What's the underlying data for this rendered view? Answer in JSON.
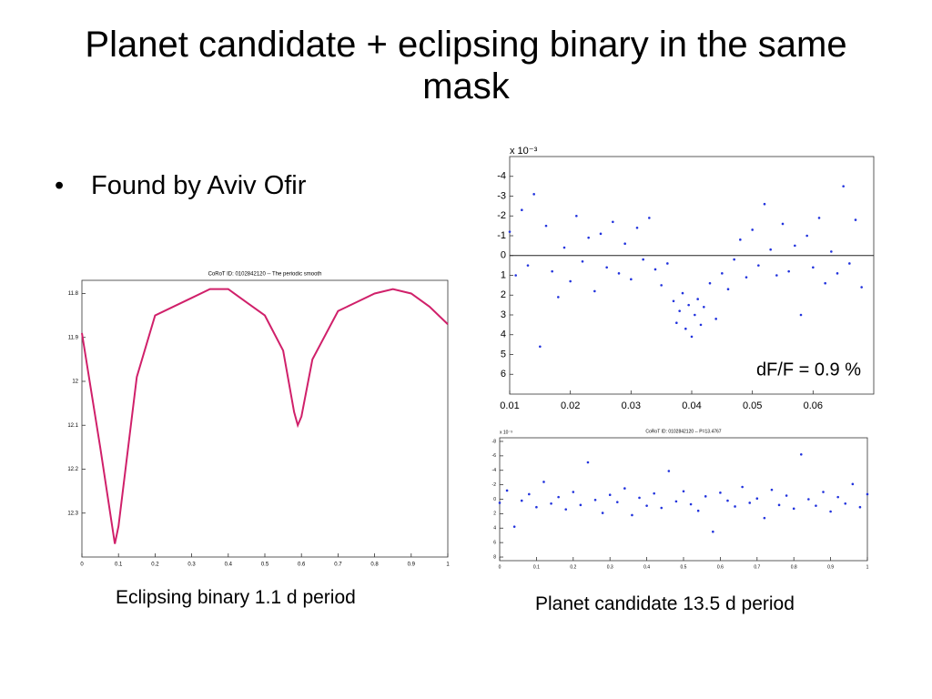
{
  "title": "Planet candidate + eclipsing binary in the same mask",
  "bullets": [
    "Found by Aviv Ofir"
  ],
  "captions": [
    "Eclipsing binary 1.1 d period",
    "Planet candidate 13.5 d period"
  ],
  "chart_data": [
    {
      "type": "line",
      "title": "CoRoT ID: 0102842120 -- The periodic smooth",
      "color": "#d0206a",
      "x": [
        0,
        0.05,
        0.09,
        0.1,
        0.15,
        0.2,
        0.25,
        0.3,
        0.35,
        0.4,
        0.45,
        0.5,
        0.55,
        0.58,
        0.59,
        0.6,
        0.63,
        0.7,
        0.75,
        0.8,
        0.85,
        0.9,
        0.95,
        1
      ],
      "values": [
        11.89,
        12.15,
        12.37,
        12.33,
        11.99,
        11.85,
        11.83,
        11.81,
        11.79,
        11.79,
        11.82,
        11.85,
        11.93,
        12.07,
        12.1,
        12.08,
        11.95,
        11.84,
        11.82,
        11.8,
        11.79,
        11.8,
        11.83,
        11.87
      ],
      "xlim": [
        0,
        1
      ],
      "xticks": [
        0,
        0.1,
        0.2,
        0.3,
        0.4,
        0.5,
        0.6,
        0.7,
        0.8,
        0.9,
        1
      ],
      "ylim": [
        11.77,
        12.4
      ],
      "yticks": [
        11.8,
        11.9,
        12,
        12.1,
        12.2,
        12.3
      ],
      "y_inverted": true
    },
    {
      "type": "scatter",
      "color": "#2233dd",
      "y_exponent_label": "x 10⁻³",
      "annotation": "dF/F = 0.9 %",
      "hline": 0,
      "x": [
        0.01,
        0.011,
        0.012,
        0.013,
        0.014,
        0.015,
        0.016,
        0.017,
        0.018,
        0.019,
        0.02,
        0.021,
        0.022,
        0.023,
        0.024,
        0.025,
        0.026,
        0.027,
        0.028,
        0.029,
        0.03,
        0.031,
        0.032,
        0.033,
        0.034,
        0.035,
        0.036,
        0.037,
        0.0375,
        0.038,
        0.0385,
        0.039,
        0.0395,
        0.04,
        0.0405,
        0.041,
        0.0415,
        0.042,
        0.043,
        0.044,
        0.045,
        0.046,
        0.047,
        0.048,
        0.049,
        0.05,
        0.051,
        0.052,
        0.053,
        0.054,
        0.055,
        0.056,
        0.057,
        0.058,
        0.059,
        0.06,
        0.061,
        0.062,
        0.063,
        0.064,
        0.065,
        0.066,
        0.067,
        0.068
      ],
      "values": [
        -1.2,
        1.0,
        -2.3,
        0.5,
        -3.1,
        4.6,
        -1.5,
        0.8,
        2.1,
        -0.4,
        1.3,
        -2.0,
        0.3,
        -0.9,
        1.8,
        -1.1,
        0.6,
        -1.7,
        0.9,
        -0.6,
        1.2,
        -1.4,
        0.2,
        -1.9,
        0.7,
        1.5,
        0.4,
        2.3,
        3.4,
        2.8,
        1.9,
        3.7,
        2.5,
        4.1,
        3.0,
        2.2,
        3.5,
        2.6,
        1.4,
        3.2,
        0.9,
        1.7,
        0.2,
        -0.8,
        1.1,
        -1.3,
        0.5,
        -2.6,
        -0.3,
        1.0,
        -1.6,
        0.8,
        -0.5,
        3.0,
        -1.0,
        0.6,
        -1.9,
        1.4,
        -0.2,
        0.9,
        -3.5,
        0.4,
        -1.8,
        1.6
      ],
      "xlim": [
        0.01,
        0.07
      ],
      "xticks": [
        0.01,
        0.02,
        0.03,
        0.04,
        0.05,
        0.06
      ],
      "ylim": [
        -5,
        7
      ],
      "yticks": [
        -4,
        -3,
        -2,
        -1,
        0,
        1,
        2,
        3,
        4,
        5,
        6
      ],
      "y_inverted": true
    },
    {
      "type": "scatter",
      "title": "CoRoT ID: 0102842120 -- P=13.4767",
      "color": "#2233dd",
      "y_exponent_label": "x 10⁻³",
      "x": [
        0,
        0.02,
        0.04,
        0.06,
        0.08,
        0.1,
        0.12,
        0.14,
        0.16,
        0.18,
        0.2,
        0.22,
        0.24,
        0.26,
        0.28,
        0.3,
        0.32,
        0.34,
        0.36,
        0.38,
        0.4,
        0.42,
        0.44,
        0.46,
        0.48,
        0.5,
        0.52,
        0.54,
        0.56,
        0.58,
        0.6,
        0.62,
        0.64,
        0.66,
        0.68,
        0.7,
        0.72,
        0.74,
        0.76,
        0.78,
        0.8,
        0.82,
        0.84,
        0.86,
        0.88,
        0.9,
        0.92,
        0.94,
        0.96,
        0.98,
        1
      ],
      "values": [
        0.5,
        -1.2,
        3.8,
        0.2,
        -0.7,
        1.1,
        -2.4,
        0.6,
        -0.3,
        1.4,
        -1.0,
        0.8,
        -5.1,
        0.1,
        1.9,
        -0.6,
        0.4,
        -1.5,
        2.2,
        -0.2,
        0.9,
        -0.8,
        1.2,
        -3.9,
        0.3,
        -1.1,
        0.7,
        1.6,
        -0.4,
        4.5,
        -0.9,
        0.2,
        1.0,
        -1.7,
        0.5,
        -0.1,
        2.6,
        -1.3,
        0.8,
        -0.5,
        1.3,
        -6.2,
        0.0,
        0.9,
        -1.0,
        1.7,
        -0.3,
        0.6,
        -2.1,
        1.1,
        -0.7
      ],
      "xlim": [
        0,
        1
      ],
      "xticks": [
        0,
        0.1,
        0.2,
        0.3,
        0.4,
        0.5,
        0.6,
        0.7,
        0.8,
        0.9,
        1
      ],
      "ylim": [
        -8.5,
        8.5
      ],
      "yticks": [
        -8,
        -6,
        -4,
        -2,
        0,
        2,
        4,
        6,
        8
      ],
      "y_inverted": true
    }
  ]
}
